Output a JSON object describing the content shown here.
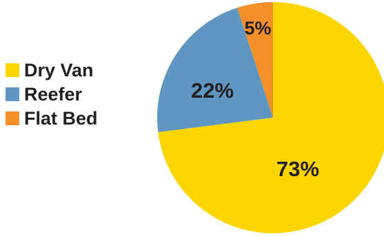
{
  "chart_data": {
    "type": "pie",
    "categories": [
      "Dry Van",
      "Reefer",
      "Flat Bed"
    ],
    "values": [
      73,
      22,
      5
    ],
    "data_labels": [
      "73%",
      "22%",
      "5%"
    ],
    "colors": [
      "#FFD500",
      "#5F97C2",
      "#F58F2A"
    ],
    "title": "",
    "legend_position": "left",
    "start_angle": "12 o'clock, clockwise"
  }
}
